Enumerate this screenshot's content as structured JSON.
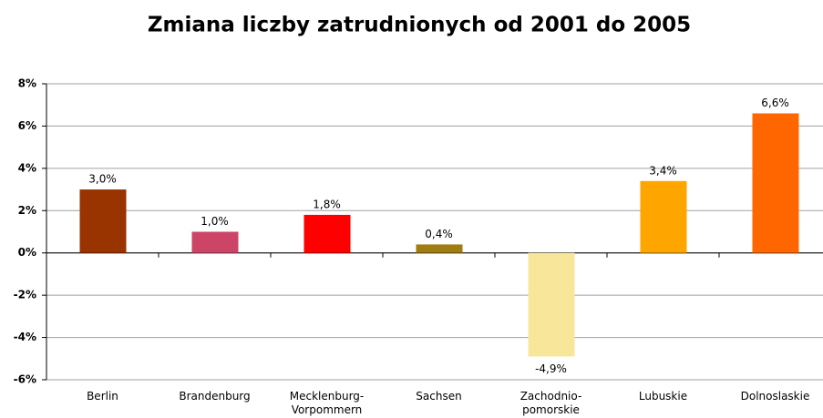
{
  "chart_data": {
    "type": "bar",
    "title": "Zmiana liczby zatrudnionych od 2001 do 2005",
    "categories": [
      "Berlin",
      "Brandenburg",
      "Mecklenburg-Vorpommern",
      "Sachsen",
      "Zachodnio-pomorskie",
      "Lubuskie",
      "Dolnoslaskie"
    ],
    "values": [
      3.0,
      1.0,
      1.8,
      0.4,
      -4.9,
      3.4,
      6.6
    ],
    "value_labels": [
      "3,0%",
      "1,0%",
      "1,8%",
      "0,4%",
      "-4,9%",
      "3,4%",
      "6,6%"
    ],
    "colors": [
      "#993300",
      "#cc4466",
      "#ff0000",
      "#a07d10",
      "#f8e79a",
      "#ffa500",
      "#ff6600"
    ],
    "ylim": [
      -6,
      8
    ],
    "yticks": [
      {
        "value": -6,
        "label": "-6%"
      },
      {
        "value": -4,
        "label": "-4%"
      },
      {
        "value": -2,
        "label": "-2%"
      },
      {
        "value": 0,
        "label": "0%"
      },
      {
        "value": 2,
        "label": "2%"
      },
      {
        "value": 4,
        "label": "4%"
      },
      {
        "value": 6,
        "label": "6%"
      },
      {
        "value": 8,
        "label": "8%"
      }
    ],
    "grid": true
  }
}
